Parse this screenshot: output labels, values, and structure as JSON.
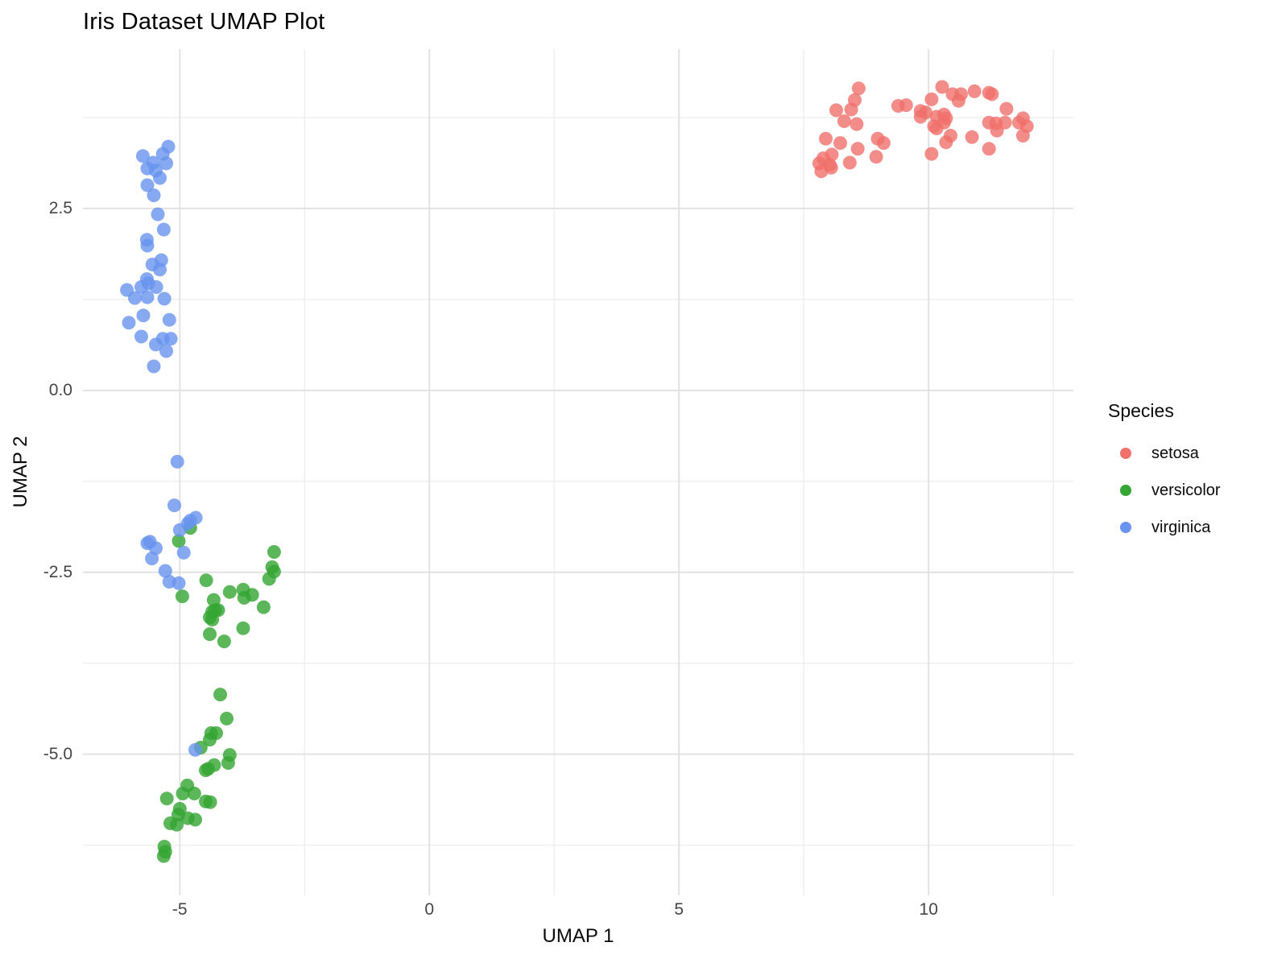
{
  "chart_data": {
    "type": "scatter",
    "title": "Iris Dataset UMAP Plot",
    "xlabel": "UMAP 1",
    "ylabel": "UMAP 2",
    "xlim": [
      -6.94,
      12.9
    ],
    "ylim": [
      -6.94,
      4.69
    ],
    "grid": true,
    "x_ticks": [
      {
        "value": -5,
        "label": "-5"
      },
      {
        "value": 0,
        "label": "0"
      },
      {
        "value": 5,
        "label": "5"
      },
      {
        "value": 10,
        "label": "10"
      }
    ],
    "x_minor_ticks": [
      -2.5,
      2.5,
      7.5,
      12.5
    ],
    "y_ticks": [
      {
        "value": 2.5,
        "label": "2.5"
      },
      {
        "value": 0,
        "label": "0.0"
      },
      {
        "value": -2.5,
        "label": "-2.5"
      },
      {
        "value": -5,
        "label": "-5.0"
      }
    ],
    "y_minor_ticks": [
      3.75,
      1.25,
      -1.25,
      -3.75,
      -6.25
    ],
    "point_radius": 8.5,
    "point_opacity": 0.8,
    "legend": {
      "title": "Species",
      "position": "right"
    },
    "series": [
      {
        "name": "setosa",
        "color": "#F0716B",
        "points": [
          [
            8.6,
            4.15
          ],
          [
            8.52,
            3.99
          ],
          [
            8.15,
            3.85
          ],
          [
            8.45,
            3.86
          ],
          [
            8.31,
            3.7
          ],
          [
            8.56,
            3.66
          ],
          [
            9.39,
            3.91
          ],
          [
            9.55,
            3.92
          ],
          [
            10.27,
            4.17
          ],
          [
            10.48,
            4.07
          ],
          [
            10.65,
            4.07
          ],
          [
            10.6,
            3.98
          ],
          [
            10.92,
            4.11
          ],
          [
            11.21,
            4.09
          ],
          [
            11.27,
            4.07
          ],
          [
            10.06,
            4.0
          ],
          [
            9.84,
            3.84
          ],
          [
            9.94,
            3.82
          ],
          [
            9.84,
            3.76
          ],
          [
            10.16,
            3.76
          ],
          [
            10.31,
            3.79
          ],
          [
            10.35,
            3.74
          ],
          [
            10.11,
            3.63
          ],
          [
            10.16,
            3.6
          ],
          [
            10.31,
            3.68
          ],
          [
            11.56,
            3.87
          ],
          [
            11.89,
            3.74
          ],
          [
            11.97,
            3.63
          ],
          [
            11.81,
            3.68
          ],
          [
            11.35,
            3.67
          ],
          [
            11.21,
            3.68
          ],
          [
            11.37,
            3.57
          ],
          [
            11.53,
            3.68
          ],
          [
            11.89,
            3.5
          ],
          [
            10.44,
            3.5
          ],
          [
            10.35,
            3.41
          ],
          [
            10.87,
            3.48
          ],
          [
            7.94,
            3.46
          ],
          [
            8.23,
            3.4
          ],
          [
            8.58,
            3.32
          ],
          [
            8.06,
            3.24
          ],
          [
            7.89,
            3.19
          ],
          [
            7.81,
            3.12
          ],
          [
            8.02,
            3.1
          ],
          [
            8.05,
            3.06
          ],
          [
            7.85,
            3.01
          ],
          [
            8.42,
            3.13
          ],
          [
            8.98,
            3.46
          ],
          [
            9.1,
            3.4
          ],
          [
            8.95,
            3.21
          ],
          [
            10.06,
            3.25
          ],
          [
            11.21,
            3.32
          ]
        ]
      },
      {
        "name": "versicolor",
        "color": "#33A532",
        "points": [
          [
            -4.79,
            -1.89
          ],
          [
            -5.02,
            -2.07
          ],
          [
            -4.95,
            -2.83
          ],
          [
            -4.47,
            -2.61
          ],
          [
            -3.11,
            -2.22
          ],
          [
            -3.15,
            -2.43
          ],
          [
            -3.11,
            -2.49
          ],
          [
            -3.21,
            -2.59
          ],
          [
            -4.32,
            -2.88
          ],
          [
            -4.0,
            -2.77
          ],
          [
            -3.73,
            -2.74
          ],
          [
            -3.71,
            -2.85
          ],
          [
            -3.55,
            -2.81
          ],
          [
            -3.32,
            -2.98
          ],
          [
            -4.35,
            -3.04
          ],
          [
            -4.23,
            -3.02
          ],
          [
            -4.4,
            -3.12
          ],
          [
            -4.35,
            -3.15
          ],
          [
            -4.29,
            -3.02
          ],
          [
            -3.73,
            -3.27
          ],
          [
            -4.4,
            -3.35
          ],
          [
            -4.11,
            -3.45
          ],
          [
            -4.19,
            -4.18
          ],
          [
            -4.06,
            -4.51
          ],
          [
            -4.37,
            -4.71
          ],
          [
            -4.4,
            -4.8
          ],
          [
            -4.27,
            -4.71
          ],
          [
            -4.58,
            -4.91
          ],
          [
            -4.0,
            -5.01
          ],
          [
            -4.03,
            -5.12
          ],
          [
            -4.43,
            -5.2
          ],
          [
            -4.31,
            -5.15
          ],
          [
            -4.48,
            -5.22
          ],
          [
            -4.85,
            -5.43
          ],
          [
            -4.94,
            -5.54
          ],
          [
            -4.71,
            -5.54
          ],
          [
            -5.26,
            -5.61
          ],
          [
            -4.48,
            -5.65
          ],
          [
            -4.39,
            -5.66
          ],
          [
            -5.0,
            -5.75
          ],
          [
            -5.03,
            -5.83
          ],
          [
            -4.84,
            -5.88
          ],
          [
            -4.69,
            -5.9
          ],
          [
            -5.19,
            -5.95
          ],
          [
            -5.06,
            -5.97
          ],
          [
            -5.31,
            -6.27
          ],
          [
            -5.29,
            -6.34
          ],
          [
            -5.32,
            -6.4
          ]
        ]
      },
      {
        "name": "virginica",
        "color": "#6893EF",
        "points": [
          [
            -5.23,
            3.35
          ],
          [
            -5.34,
            3.25
          ],
          [
            -5.74,
            3.22
          ],
          [
            -5.53,
            3.13
          ],
          [
            -5.27,
            3.12
          ],
          [
            -5.65,
            3.05
          ],
          [
            -5.48,
            3.02
          ],
          [
            -5.4,
            2.92
          ],
          [
            -5.65,
            2.82
          ],
          [
            -5.52,
            2.68
          ],
          [
            -5.44,
            2.42
          ],
          [
            -5.32,
            2.21
          ],
          [
            -5.66,
            2.07
          ],
          [
            -5.65,
            1.99
          ],
          [
            -5.37,
            1.79
          ],
          [
            -5.55,
            1.73
          ],
          [
            -5.4,
            1.66
          ],
          [
            -5.66,
            1.53
          ],
          [
            -5.63,
            1.47
          ],
          [
            -5.77,
            1.42
          ],
          [
            -5.47,
            1.42
          ],
          [
            -6.06,
            1.38
          ],
          [
            -5.9,
            1.27
          ],
          [
            -5.65,
            1.28
          ],
          [
            -5.31,
            1.26
          ],
          [
            -5.73,
            1.03
          ],
          [
            -6.02,
            0.93
          ],
          [
            -5.21,
            0.97
          ],
          [
            -5.77,
            0.74
          ],
          [
            -5.34,
            0.71
          ],
          [
            -5.18,
            0.71
          ],
          [
            -5.48,
            0.63
          ],
          [
            -5.27,
            0.54
          ],
          [
            -5.52,
            0.33
          ],
          [
            -5.05,
            -0.98
          ],
          [
            -5.11,
            -1.58
          ],
          [
            -4.79,
            -1.79
          ],
          [
            -4.68,
            -1.75
          ],
          [
            -4.84,
            -1.83
          ],
          [
            -5.0,
            -1.92
          ],
          [
            -5.6,
            -2.08
          ],
          [
            -5.65,
            -2.1
          ],
          [
            -5.48,
            -2.17
          ],
          [
            -5.56,
            -2.31
          ],
          [
            -4.92,
            -2.23
          ],
          [
            -5.29,
            -2.48
          ],
          [
            -5.21,
            -2.63
          ],
          [
            -5.02,
            -2.65
          ],
          [
            -4.69,
            -4.94
          ]
        ]
      }
    ]
  },
  "colors": {
    "background": "#FFFFFF",
    "grid_major": "#E2E2E2",
    "grid_minor": "#EFEFEF",
    "axis_text": "#454545",
    "title_text": "#000000"
  }
}
